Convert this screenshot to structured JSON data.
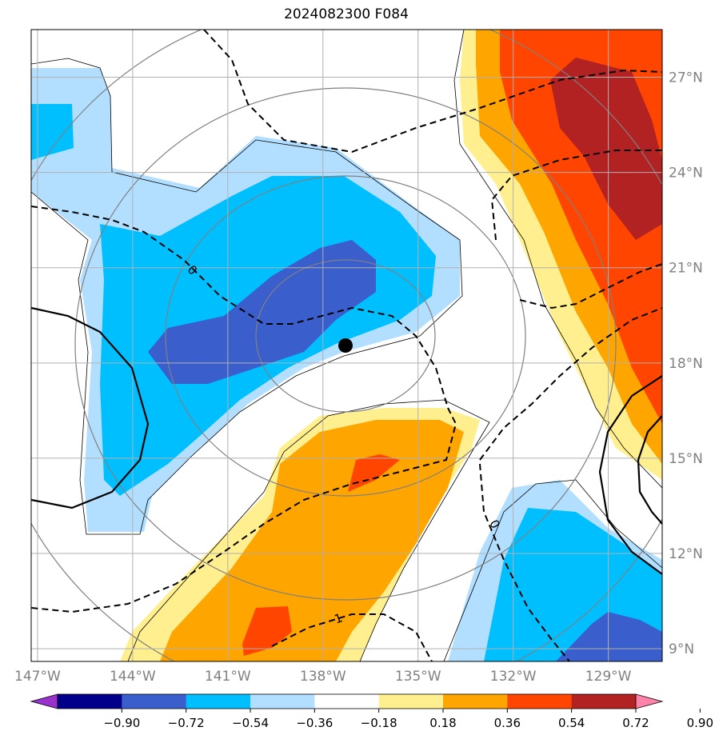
{
  "chart_data": {
    "type": "contour-map",
    "title": "2024082300 F084",
    "x_ticks": [
      "147°W",
      "144°W",
      "141°W",
      "138°W",
      "135°W",
      "132°W",
      "129°W"
    ],
    "x_values": [
      -147,
      -144,
      -141,
      -138,
      -135,
      -132,
      -129
    ],
    "y_ticks": [
      "9°N",
      "12°N",
      "15°N",
      "18°N",
      "21°N",
      "24°N",
      "27°N"
    ],
    "y_values": [
      9,
      12,
      15,
      18,
      21,
      24,
      27
    ],
    "xlim": [
      -147.2,
      -127.3
    ],
    "ylim": [
      8.6,
      28.5
    ],
    "grid": true,
    "colorbar": {
      "orientation": "horizontal",
      "extend": "both",
      "levels": [
        -0.9,
        -0.72,
        -0.54,
        -0.36,
        -0.18,
        0.18,
        0.36,
        0.54,
        0.72,
        0.9
      ],
      "tick_labels": [
        "−0.90",
        "−0.72",
        "−0.54",
        "−0.36",
        "−0.18",
        "0.18",
        "0.36",
        "0.54",
        "0.72",
        "0.90"
      ],
      "colors": [
        "#9932cc",
        "#00008b",
        "#3a5fcd",
        "#00bfff",
        "#b2dfff",
        "#ffffff",
        "#ffef8f",
        "#ffa500",
        "#ff4500",
        "#b22222",
        "#ff82ab"
      ]
    },
    "contour_labels": [
      "0",
      "0",
      "1"
    ],
    "center_marker": {
      "lon": -137.3,
      "lat": 18.6
    }
  }
}
